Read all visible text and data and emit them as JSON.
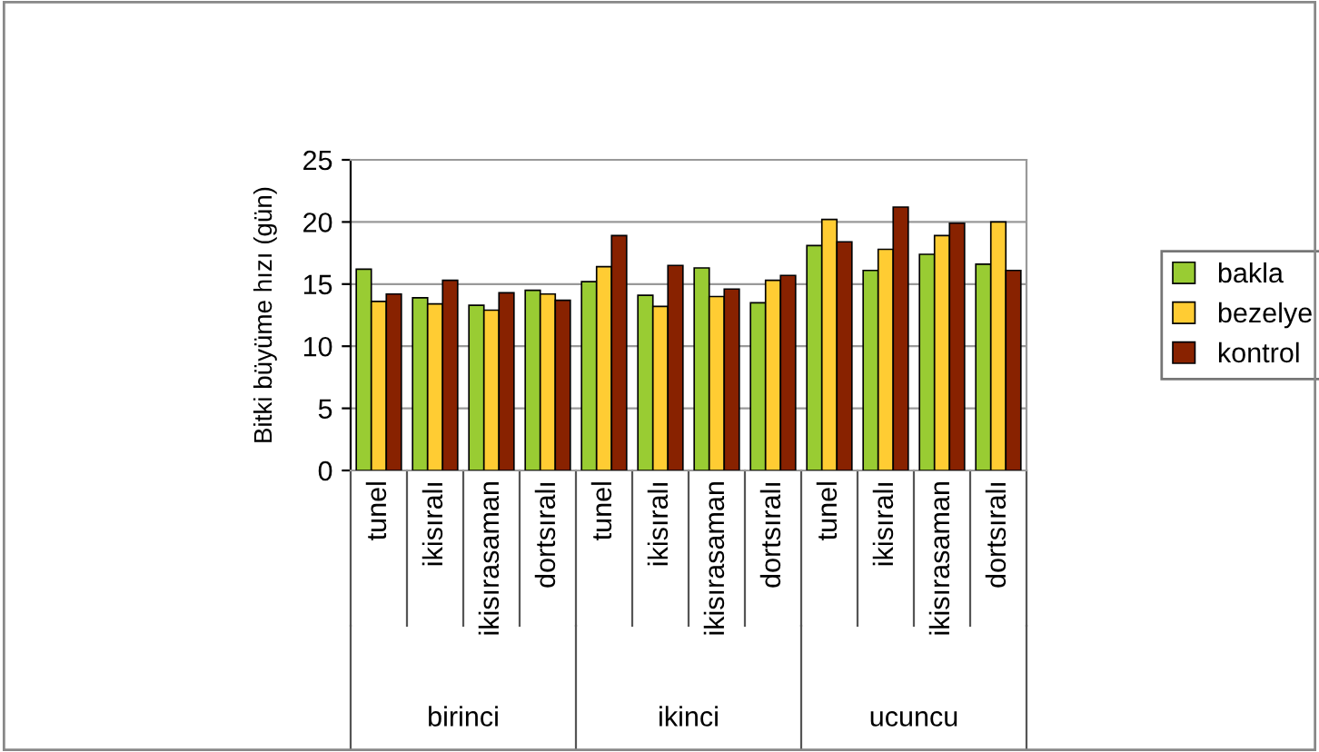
{
  "chart_data": {
    "type": "bar",
    "ylabel": "Bitki büyüme hızı (gün)",
    "categories": [
      "tunel",
      "ikisıralı",
      "ikisırasaman",
      "dortsıralı",
      "tunel",
      "ikisıralı",
      "ikisırasaman",
      "dortsıralı",
      "tunel",
      "ikisıralı",
      "ikisırasaman",
      "dortsıralı"
    ],
    "series": [
      {
        "name": "bakla",
        "color": "#99cc33",
        "values": [
          16.2,
          13.9,
          13.3,
          14.5,
          15.2,
          14.1,
          16.3,
          13.5,
          18.1,
          16.1,
          17.4,
          16.6
        ]
      },
      {
        "name": "bezelye",
        "color": "#ffcc33",
        "values": [
          13.6,
          13.4,
          12.9,
          14.2,
          16.4,
          13.2,
          14.0,
          15.3,
          20.2,
          17.8,
          18.9,
          20.0
        ]
      },
      {
        "name": "kontrol",
        "color": "#882200",
        "values": [
          14.2,
          15.3,
          14.3,
          13.7,
          18.9,
          16.5,
          14.6,
          15.7,
          18.4,
          21.2,
          19.9,
          16.1
        ]
      }
    ],
    "annotations": [
      "birinci",
      "ikinci",
      "ucuncu"
    ],
    "ylim": [
      0,
      25
    ],
    "yticks": [
      0,
      5,
      10,
      15,
      20,
      25
    ],
    "grid": "y",
    "legend": "right"
  }
}
